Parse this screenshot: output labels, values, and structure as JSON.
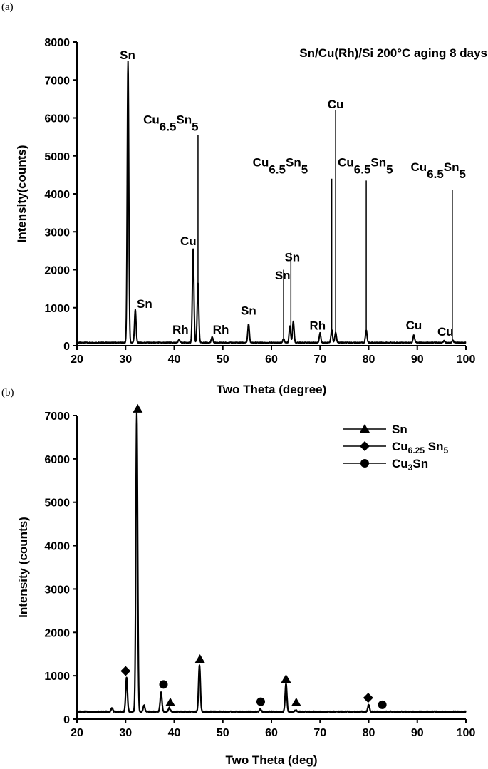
{
  "chart_data": [
    {
      "type": "line",
      "panel_label": "(a)",
      "title": "Sn/Cu(Rh)/Si 200°C aging 8 days",
      "xlabel": "Two Theta (degree)",
      "ylabel": "Intensity(counts)",
      "xlim": [
        20,
        100
      ],
      "ylim": [
        0,
        8000
      ],
      "xticks": [
        20,
        30,
        40,
        50,
        60,
        70,
        80,
        90,
        100
      ],
      "yticks": [
        0,
        1000,
        2000,
        3000,
        4000,
        5000,
        6000,
        7000,
        8000
      ],
      "grid": false,
      "baseline": 80,
      "peaks": [
        {
          "x": 30.5,
          "y": 7500
        },
        {
          "x": 32.0,
          "y": 950
        },
        {
          "x": 41.0,
          "y": 160
        },
        {
          "x": 43.9,
          "y": 2550
        },
        {
          "x": 44.9,
          "y": 1650
        },
        {
          "x": 47.8,
          "y": 230
        },
        {
          "x": 55.3,
          "y": 570
        },
        {
          "x": 62.5,
          "y": 180
        },
        {
          "x": 63.8,
          "y": 520
        },
        {
          "x": 64.5,
          "y": 640
        },
        {
          "x": 70.0,
          "y": 330
        },
        {
          "x": 72.4,
          "y": 420
        },
        {
          "x": 73.2,
          "y": 350
        },
        {
          "x": 79.5,
          "y": 410
        },
        {
          "x": 89.3,
          "y": 280
        },
        {
          "x": 95.5,
          "y": 130
        },
        {
          "x": 97.3,
          "y": 140
        }
      ],
      "annotations": [
        {
          "text": "Sn",
          "sub": "",
          "x": 30.4,
          "y": 7550
        },
        {
          "text": "Sn",
          "sub": "",
          "x": 33.9,
          "y": 1000
        },
        {
          "text": "Rh",
          "sub": "",
          "x": 41.3,
          "y": 320
        },
        {
          "text": "Cu",
          "sub": "",
          "x": 42.9,
          "y": 2650
        },
        {
          "text": "Rh",
          "sub": "",
          "x": 49.6,
          "y": 320
        },
        {
          "text": "Sn",
          "sub": "",
          "x": 55.3,
          "y": 820
        },
        {
          "text": "Sn",
          "sub": "",
          "x": 62.3,
          "y": 1750
        },
        {
          "text": "Sn",
          "sub": "",
          "x": 64.3,
          "y": 2230
        },
        {
          "text": "Rh",
          "sub": "",
          "x": 69.5,
          "y": 420
        },
        {
          "text": "Cu",
          "sub": "",
          "x": 73.2,
          "y": 6250
        },
        {
          "text": "Cu",
          "sub": "",
          "x": 89.3,
          "y": 430
        },
        {
          "text": "Cu",
          "sub": "",
          "x": 95.8,
          "y": 260
        },
        {
          "text": "Cu",
          "sub": "6.5",
          "tail": "Sn",
          "sub2": "5",
          "x": 45.0,
          "y": 5850
        },
        {
          "text": "Cu",
          "sub": "6.5",
          "tail": "Sn",
          "sub2": "5",
          "x": 67.5,
          "y": 4720
        },
        {
          "text": "Cu",
          "sub": "6.5",
          "tail": "Sn",
          "sub2": "5",
          "x": 85.0,
          "y": 4720
        },
        {
          "text": "Cu",
          "sub": "6.5",
          "tail": "Sn",
          "sub2": "5",
          "x": 100.0,
          "y": 4600
        }
      ],
      "leader_lines": [
        {
          "x": 44.9,
          "y0": 1650,
          "y1": 5550
        },
        {
          "x": 62.5,
          "y0": 180,
          "y1": 2000
        },
        {
          "x": 64.0,
          "y0": 520,
          "y1": 2450
        },
        {
          "x": 72.4,
          "y0": 420,
          "y1": 4400
        },
        {
          "x": 73.2,
          "y0": 350,
          "y1": 6200
        },
        {
          "x": 79.5,
          "y0": 410,
          "y1": 4350
        },
        {
          "x": 97.2,
          "y0": 140,
          "y1": 4100
        }
      ]
    },
    {
      "type": "line",
      "panel_label": "(b)",
      "xlabel": "Two Theta (deg)",
      "ylabel": "Intensity (counts)",
      "xlim": [
        20,
        100
      ],
      "ylim": [
        0,
        7000
      ],
      "xticks": [
        20,
        30,
        40,
        50,
        60,
        70,
        80,
        90,
        100
      ],
      "yticks": [
        0,
        1000,
        2000,
        3000,
        4000,
        5000,
        6000,
        7000
      ],
      "grid": false,
      "baseline": 170,
      "peaks": [
        {
          "x": 27.2,
          "y": 250
        },
        {
          "x": 30.2,
          "y": 950
        },
        {
          "x": 32.3,
          "y": 7050
        },
        {
          "x": 33.8,
          "y": 320
        },
        {
          "x": 37.3,
          "y": 620
        },
        {
          "x": 39.0,
          "y": 260
        },
        {
          "x": 45.2,
          "y": 1250
        },
        {
          "x": 57.7,
          "y": 230
        },
        {
          "x": 63.0,
          "y": 820
        },
        {
          "x": 65.0,
          "y": 210
        },
        {
          "x": 80.0,
          "y": 330
        },
        {
          "x": 82.8,
          "y": 160
        },
        {
          "x": 89.8,
          "y": 160
        }
      ],
      "legend": {
        "placement": "top-right",
        "entries": [
          {
            "marker": "triangle",
            "label": "Sn",
            "sub": "",
            "tail": "",
            "sub2": ""
          },
          {
            "marker": "diamond",
            "label": "Cu",
            "sub": "6.25",
            "tail": " Sn",
            "sub2": "5"
          },
          {
            "marker": "circle",
            "label": "Cu",
            "sub": "3",
            "tail": "Sn",
            "sub2": ""
          }
        ]
      },
      "markers": [
        {
          "shape": "triangle",
          "x": 32.5,
          "y": 7150
        },
        {
          "shape": "triangle",
          "x": 39.2,
          "y": 380
        },
        {
          "shape": "triangle",
          "x": 45.3,
          "y": 1380
        },
        {
          "shape": "triangle",
          "x": 63.0,
          "y": 920
        },
        {
          "shape": "triangle",
          "x": 65.1,
          "y": 380
        },
        {
          "shape": "diamond",
          "x": 30.0,
          "y": 1110
        },
        {
          "shape": "diamond",
          "x": 79.9,
          "y": 490
        },
        {
          "shape": "circle",
          "x": 37.8,
          "y": 800
        },
        {
          "shape": "circle",
          "x": 57.8,
          "y": 400
        },
        {
          "shape": "circle",
          "x": 82.8,
          "y": 330
        }
      ]
    }
  ]
}
